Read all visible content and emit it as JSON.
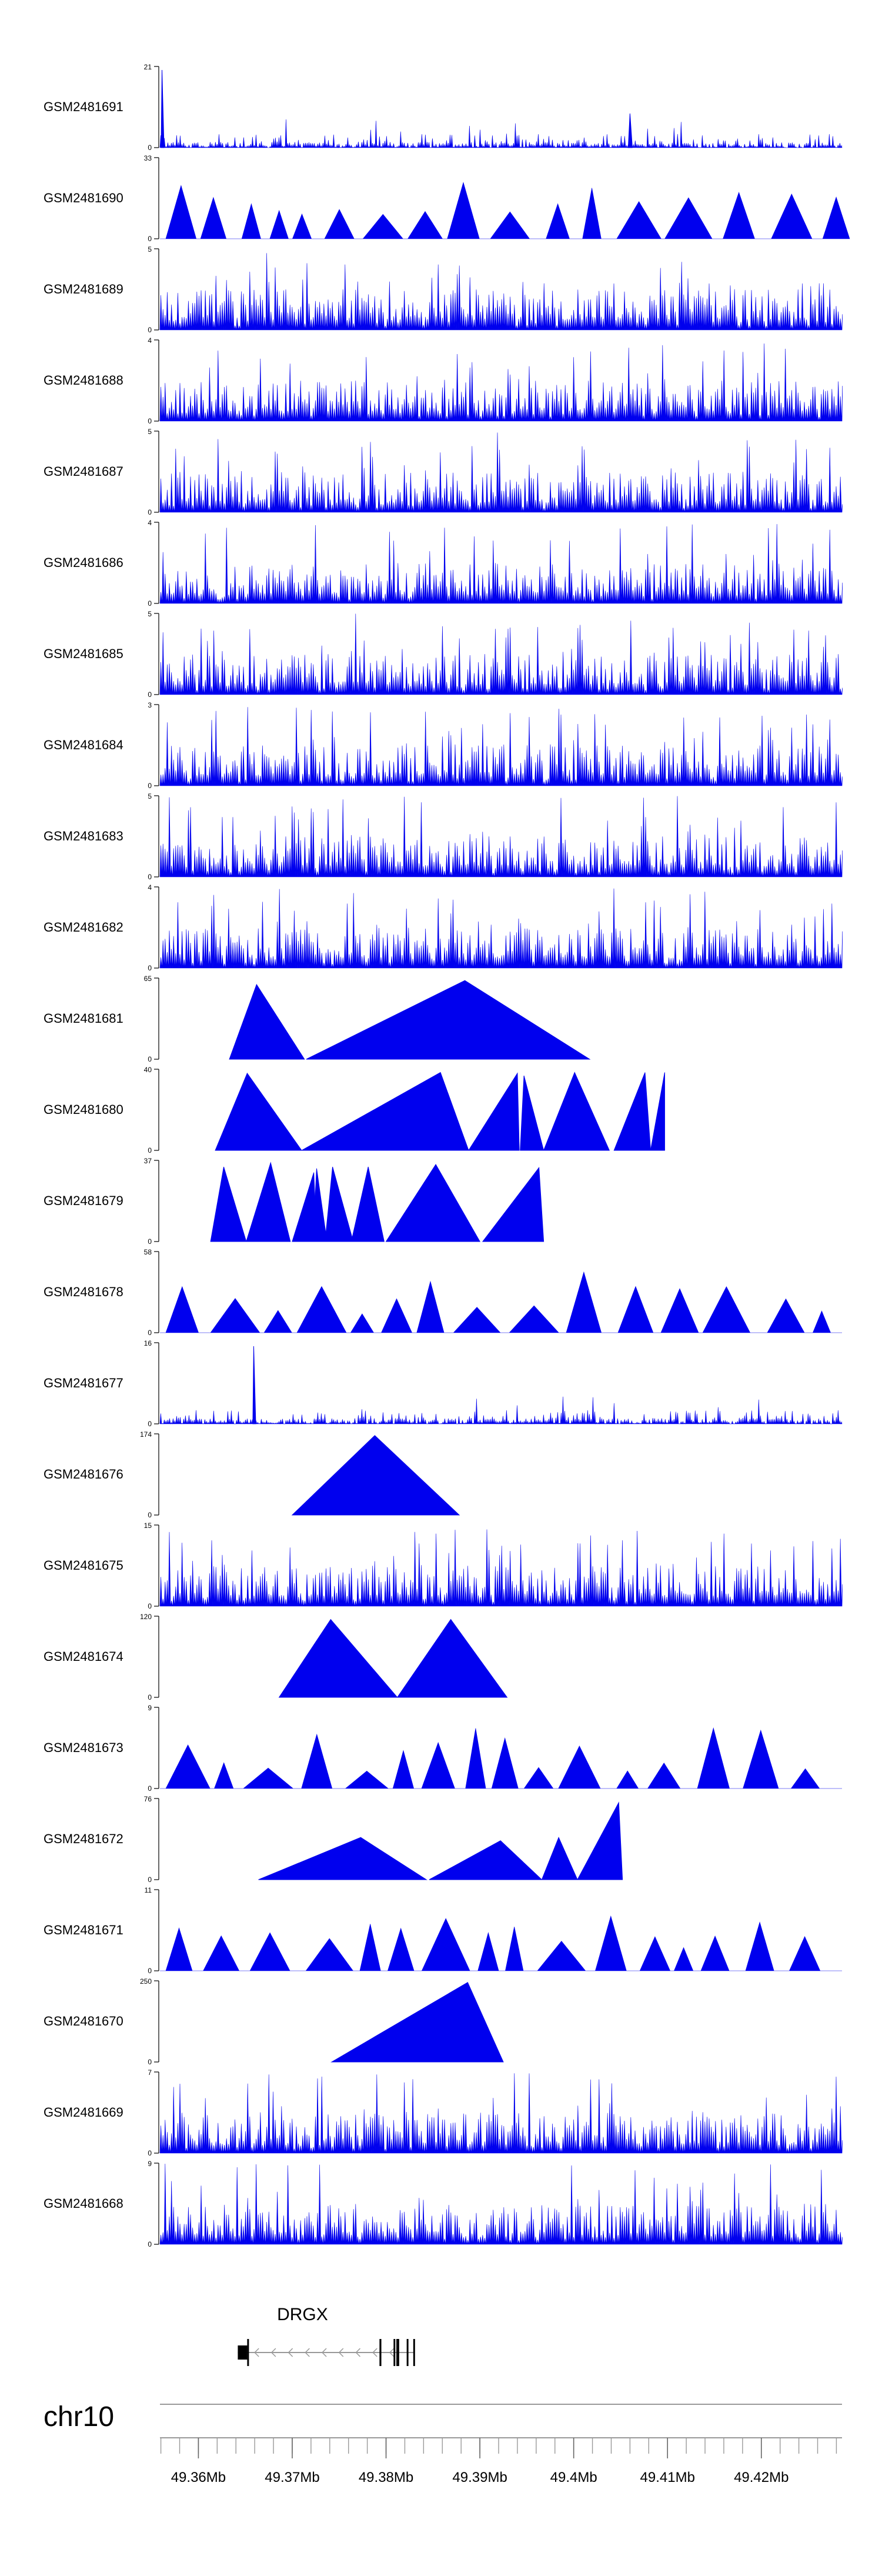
{
  "chart_data": {
    "type": "area",
    "track_color": "#0000ee",
    "tracks": [
      {
        "name": "GSM2481691",
        "ymax": "21",
        "ymin": "0",
        "shape": "noise",
        "seed": 11
      },
      {
        "name": "GSM2481690",
        "ymax": "33",
        "ymin": "0",
        "shape": "mixed",
        "seed": 12
      },
      {
        "name": "GSM2481689",
        "ymax": "5",
        "ymin": "0",
        "shape": "dense",
        "seed": 13
      },
      {
        "name": "GSM2481688",
        "ymax": "4",
        "ymin": "0",
        "shape": "dense",
        "seed": 14
      },
      {
        "name": "GSM2481687",
        "ymax": "5",
        "ymin": "0",
        "shape": "dense",
        "seed": 15
      },
      {
        "name": "GSM2481686",
        "ymax": "4",
        "ymin": "0",
        "shape": "dense",
        "seed": 16
      },
      {
        "name": "GSM2481685",
        "ymax": "5",
        "ymin": "0",
        "shape": "dense",
        "seed": 17
      },
      {
        "name": "GSM2481684",
        "ymax": "3",
        "ymin": "0",
        "shape": "dense",
        "seed": 18
      },
      {
        "name": "GSM2481683",
        "ymax": "5",
        "ymin": "0",
        "shape": "dense",
        "seed": 19
      },
      {
        "name": "GSM2481682",
        "ymax": "4",
        "ymin": "0",
        "shape": "dense",
        "seed": 20
      },
      {
        "name": "GSM2481681",
        "ymax": "65",
        "ymin": "0",
        "shape": "peaks",
        "peaks": [
          [
            49.3633,
            49.3662,
            49.3713,
            0.92
          ],
          [
            49.3715,
            49.3884,
            49.4017,
            0.97
          ]
        ]
      },
      {
        "name": "GSM2481680",
        "ymax": "40",
        "ymin": "0",
        "shape": "peaks",
        "peaks": [
          [
            49.3618,
            49.3652,
            49.371,
            0.95
          ],
          [
            49.371,
            49.3858,
            49.3888,
            0.96
          ],
          [
            49.3858,
            49.3859,
            49.3868,
            0.6
          ],
          [
            49.3888,
            49.394,
            49.3942,
            0.95
          ],
          [
            49.3943,
            49.3947,
            49.3968,
            0.92
          ],
          [
            49.3968,
            49.4001,
            49.4038,
            0.96
          ],
          [
            49.4043,
            49.4076,
            49.4082,
            0.96
          ],
          [
            49.4082,
            49.4097,
            49.4097,
            0.96
          ]
        ]
      },
      {
        "name": "GSM2481679",
        "ymax": "37",
        "ymin": "0",
        "shape": "peaks",
        "peaks": [
          [
            49.3613,
            49.3627,
            49.3651,
            0.92
          ],
          [
            49.3651,
            49.3677,
            49.3698,
            0.97
          ],
          [
            49.37,
            49.3723,
            49.3726,
            0.85
          ],
          [
            49.3722,
            49.3726,
            49.3737,
            0.9
          ],
          [
            49.3735,
            49.3743,
            49.3765,
            0.92
          ],
          [
            49.3763,
            49.3781,
            49.3798,
            0.92
          ],
          [
            49.38,
            49.3853,
            49.39,
            0.95
          ],
          [
            49.3903,
            49.3963,
            49.3968,
            0.91
          ]
        ]
      },
      {
        "name": "GSM2481678",
        "ymax": "58",
        "ymin": "0",
        "shape": "mixed",
        "seed": 21
      },
      {
        "name": "GSM2481677",
        "ymax": "16",
        "ymin": "0",
        "shape": "noise",
        "seed": 22
      },
      {
        "name": "GSM2481676",
        "ymax": "174",
        "ymin": "0",
        "shape": "peaks",
        "peaks": [
          [
            49.37,
            49.3788,
            49.3878,
            0.98
          ]
        ]
      },
      {
        "name": "GSM2481675",
        "ymax": "15",
        "ymin": "0",
        "shape": "dense",
        "seed": 23
      },
      {
        "name": "GSM2481674",
        "ymax": "120",
        "ymin": "0",
        "shape": "peaks",
        "peaks": [
          [
            49.3686,
            49.3741,
            49.3812,
            0.96
          ],
          [
            49.3812,
            49.3869,
            49.3929,
            0.96
          ]
        ]
      },
      {
        "name": "GSM2481673",
        "ymax": "9",
        "ymin": "0",
        "shape": "mixed",
        "seed": 24
      },
      {
        "name": "GSM2481672",
        "ymax": "76",
        "ymin": "0",
        "shape": "peaks",
        "peaks": [
          [
            49.3664,
            49.3773,
            49.3843,
            0.52
          ],
          [
            49.3846,
            49.3922,
            49.3966,
            0.48
          ],
          [
            49.3966,
            49.3984,
            49.4004,
            0.52
          ],
          [
            49.4004,
            49.4048,
            49.4052,
            0.95
          ]
        ]
      },
      {
        "name": "GSM2481671",
        "ymax": "11",
        "ymin": "0",
        "shape": "mixed",
        "seed": 25
      },
      {
        "name": "GSM2481670",
        "ymax": "250",
        "ymin": "0",
        "shape": "peaks",
        "peaks": [
          [
            49.3742,
            49.3887,
            49.3925,
            0.98
          ]
        ]
      },
      {
        "name": "GSM2481669",
        "ymax": "7",
        "ymin": "0",
        "shape": "dense",
        "seed": 26
      },
      {
        "name": "GSM2481668",
        "ymax": "9",
        "ymin": "0",
        "shape": "dense",
        "seed": 27
      }
    ],
    "gene": {
      "name": "DRGX",
      "strand": "-",
      "exons": [
        [
          49.3642,
          49.3652,
          "utr"
        ],
        [
          49.3652,
          49.3653,
          "cds"
        ],
        [
          49.3793,
          49.3795,
          "cds"
        ],
        [
          49.3808,
          49.3809,
          "cds"
        ],
        [
          49.3811,
          49.3812,
          "cds"
        ],
        [
          49.3812,
          49.3814,
          "cds"
        ],
        [
          49.3822,
          49.3823,
          "cds"
        ],
        [
          49.3829,
          49.383,
          "cds"
        ]
      ],
      "start": 49.3642,
      "end": 49.383
    },
    "axis": {
      "chromosome": "chr10",
      "xmin": 49.3559,
      "xmax": 49.4286,
      "ticks": [
        "49.36Mb",
        "49.37Mb",
        "49.38Mb",
        "49.39Mb",
        "49.4Mb",
        "49.41Mb",
        "49.42Mb"
      ],
      "tick_values": [
        49.36,
        49.37,
        49.38,
        49.39,
        49.4,
        49.41,
        49.42
      ],
      "minor_step": 0.002
    }
  }
}
